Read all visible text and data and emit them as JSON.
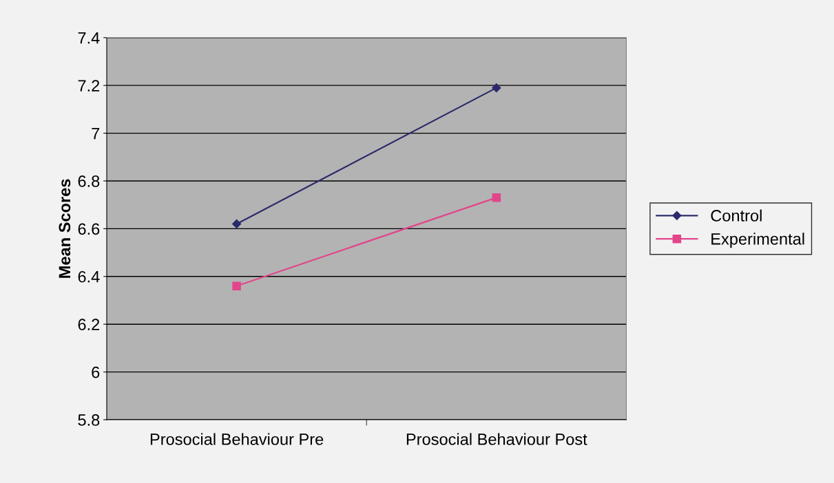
{
  "chart_data": {
    "type": "line",
    "ylabel": "Mean Scores",
    "categories": [
      "Prosocial Behaviour Pre",
      "Prosocial Behaviour Post"
    ],
    "series": [
      {
        "name": "Control",
        "color": "#2b2b6b",
        "values": [
          6.62,
          7.19
        ],
        "marker": "diamond"
      },
      {
        "name": "Experimental",
        "color": "#e2458a",
        "values": [
          6.36,
          6.73
        ],
        "marker": "square"
      }
    ],
    "ylim": [
      5.8,
      7.4
    ],
    "yticks": [
      5.8,
      6,
      6.2,
      6.4,
      6.6,
      6.8,
      7,
      7.2,
      7.4
    ],
    "grid": "y",
    "legend": "right"
  }
}
